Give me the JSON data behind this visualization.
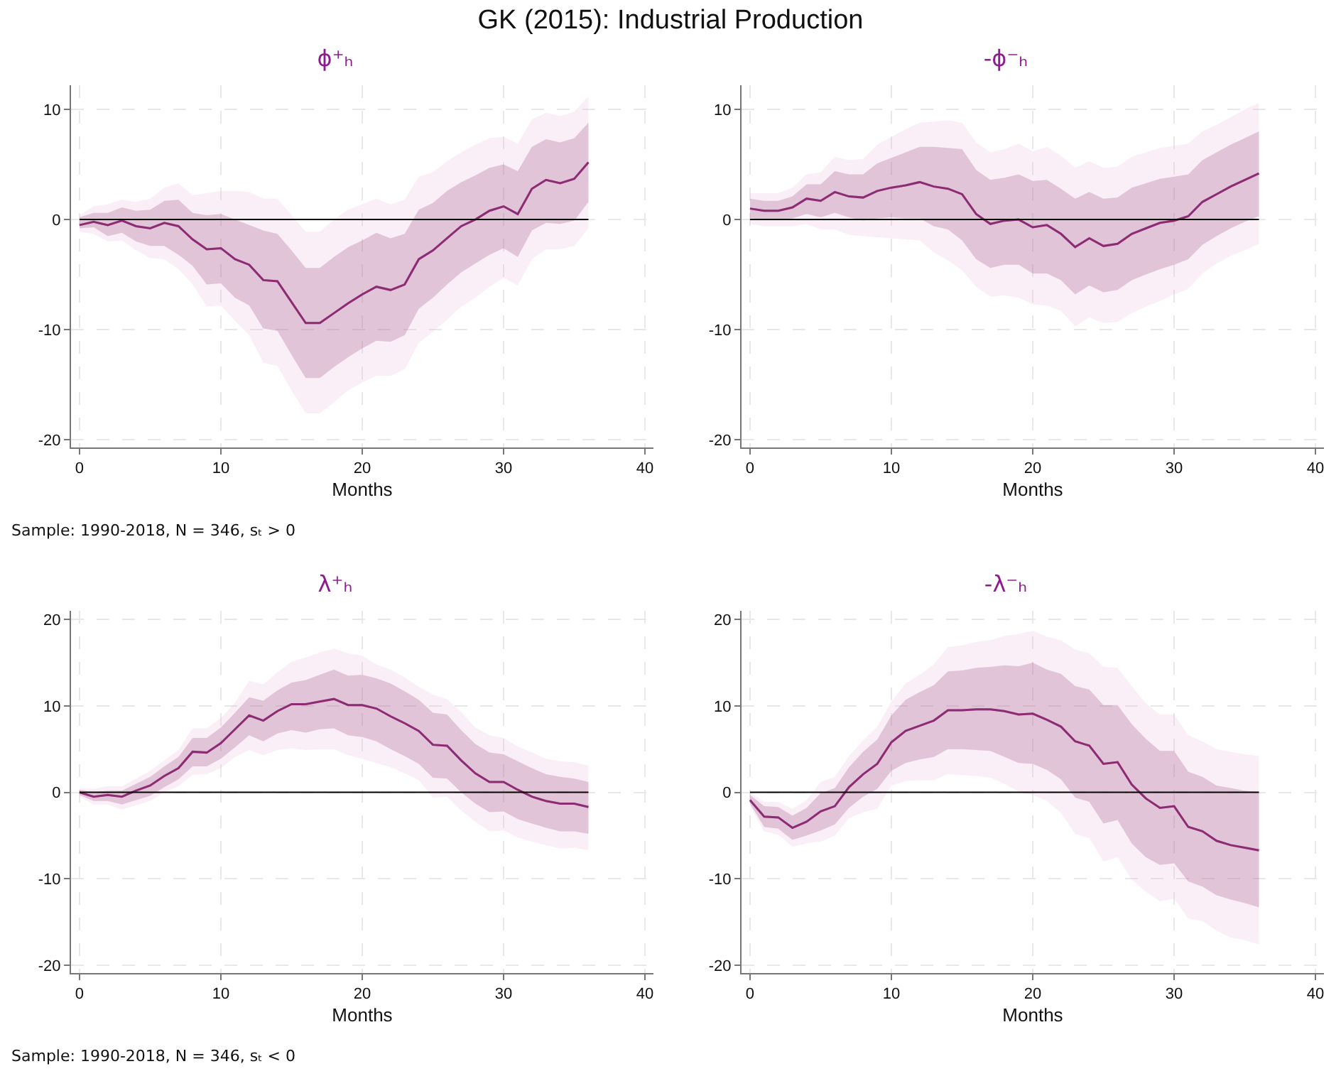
{
  "chart_data": [
    {
      "type": "line",
      "title": "GK (2015): Industrial Production",
      "subtitle": "ϕ⁺ₕ",
      "xlabel": "Months",
      "annotations": [
        "Sample: 1990-2018, N = 346, sₜ > 0"
      ],
      "x": [
        0,
        1,
        2,
        3,
        4,
        5,
        6,
        7,
        8,
        9,
        10,
        11,
        12,
        13,
        14,
        15,
        16,
        17,
        18,
        19,
        20,
        21,
        22,
        23,
        24,
        25,
        26,
        27,
        28,
        29,
        30,
        31,
        32,
        33,
        34,
        35,
        36
      ],
      "xlim": [
        -0.6,
        40.6
      ],
      "xticks": [
        0,
        10,
        20,
        30,
        40
      ],
      "ylim": [
        -20.7,
        12.2
      ],
      "yticks": [
        -20,
        -10,
        0,
        10
      ],
      "grid": true,
      "ref_lines": [
        {
          "axis": "y",
          "value": 0,
          "color": "#000000"
        }
      ],
      "series": [
        {
          "color": "#e8b8da",
          "values": [
            -0.5,
            -0.2,
            -0.5,
            -0.1,
            -0.6,
            -0.8,
            -0.3,
            -0.6,
            -1.8,
            -2.7,
            -2.6,
            -3.6,
            -4.1,
            -5.5,
            -5.6,
            -7.5,
            -9.4,
            -9.4,
            -8.5,
            -7.6,
            -6.8,
            -6.1,
            -6.4,
            -5.9,
            -3.6,
            -2.8,
            -1.7,
            -0.6,
            0,
            0.8,
            1.2,
            0.5,
            2.8,
            3.6,
            3.3,
            3.7,
            5.2
          ],
          "upper": [
            0.4,
            1.2,
            1.4,
            1.8,
            1.6,
            1.9,
            2.9,
            3.3,
            2.2,
            2.4,
            2.6,
            2.6,
            2.5,
            1.9,
            1.9,
            0.4,
            -1.1,
            -1.1,
            0,
            0.9,
            1.4,
            1.9,
            1.4,
            1.8,
            3.9,
            4.3,
            5.3,
            6.1,
            6.8,
            7.4,
            7.5,
            6.9,
            9.1,
            9.7,
            9.4,
            9.8,
            11.2
          ],
          "lower": [
            -1.1,
            -1.3,
            -2.0,
            -1.9,
            -2.8,
            -3.5,
            -3.6,
            -4.5,
            -5.9,
            -7.9,
            -7.8,
            -9.2,
            -10.5,
            -13.0,
            -13.3,
            -15.5,
            -17.6,
            -17.6,
            -16.6,
            -15.5,
            -14.8,
            -14.2,
            -14.2,
            -13.6,
            -11.2,
            -10.2,
            -9.1,
            -7.9,
            -7.1,
            -6.1,
            -5.3,
            -6.0,
            -3.6,
            -2.7,
            -2.7,
            -2.4,
            -0.8
          ]
        },
        {
          "color": "#8c2d74",
          "values": [
            -0.5,
            -0.2,
            -0.5,
            -0.1,
            -0.6,
            -0.8,
            -0.3,
            -0.6,
            -1.8,
            -2.7,
            -2.6,
            -3.6,
            -4.1,
            -5.5,
            -5.6,
            -7.5,
            -9.4,
            -9.4,
            -8.5,
            -7.6,
            -6.8,
            -6.1,
            -6.4,
            -5.9,
            -3.6,
            -2.8,
            -1.7,
            -0.6,
            0,
            0.8,
            1.2,
            0.5,
            2.8,
            3.6,
            3.3,
            3.7,
            5.2
          ],
          "upper": [
            0.2,
            0.6,
            0.6,
            1.1,
            0.8,
            0.9,
            1.7,
            1.8,
            0.6,
            0.4,
            0.5,
            0,
            -0.5,
            -1,
            -1.3,
            -2.8,
            -4.4,
            -4.4,
            -3.4,
            -2.5,
            -1.9,
            -1.2,
            -1.7,
            -1.3,
            0.9,
            1.5,
            2.6,
            3.4,
            4.0,
            4.7,
            5.0,
            4.4,
            6.6,
            7.3,
            7.0,
            7.4,
            8.8
          ],
          "lower": [
            -0.8,
            -0.7,
            -1.5,
            -1.2,
            -2.0,
            -2.4,
            -2.4,
            -3.2,
            -4.2,
            -5.9,
            -5.8,
            -7.1,
            -7.8,
            -9.9,
            -10.1,
            -12.3,
            -14.4,
            -14.4,
            -13.4,
            -12.5,
            -11.7,
            -11.0,
            -11.1,
            -10.5,
            -8.1,
            -7.1,
            -5.9,
            -4.8,
            -4.0,
            -3.2,
            -2.6,
            -3.4,
            -1.0,
            -0.3,
            -0.4,
            -0.1,
            1.6
          ]
        }
      ]
    },
    {
      "type": "line",
      "subtitle": "-ϕ⁻ₕ",
      "xlabel": "Months",
      "x": [
        0,
        1,
        2,
        3,
        4,
        5,
        6,
        7,
        8,
        9,
        10,
        11,
        12,
        13,
        14,
        15,
        16,
        17,
        18,
        19,
        20,
        21,
        22,
        23,
        24,
        25,
        26,
        27,
        28,
        29,
        30,
        31,
        32,
        33,
        34,
        35,
        36
      ],
      "xlim": [
        -0.6,
        40.6
      ],
      "xticks": [
        0,
        10,
        20,
        30,
        40
      ],
      "ylim": [
        -20.7,
        12.2
      ],
      "yticks": [
        -20,
        -10,
        0,
        10
      ],
      "grid": true,
      "ref_lines": [
        {
          "axis": "y",
          "value": 0,
          "color": "#000000"
        }
      ],
      "series": [
        {
          "color": "#e8b8da",
          "values": [
            1.0,
            0.8,
            0.8,
            1.1,
            1.9,
            1.7,
            2.5,
            2.1,
            2.0,
            2.6,
            2.9,
            3.1,
            3.4,
            3.0,
            2.8,
            2.3,
            0.5,
            -0.4,
            -0.1,
            0,
            -0.7,
            -0.5,
            -1.3,
            -2.5,
            -1.7,
            -2.4,
            -2.2,
            -1.3,
            -0.8,
            -0.3,
            -0.1,
            0.3,
            1.6,
            2.3,
            3.0,
            3.6,
            4.2
          ],
          "upper": [
            2.4,
            2.4,
            2.4,
            2.9,
            4.1,
            4.3,
            5.7,
            5.4,
            5.5,
            6.8,
            7.5,
            8.2,
            8.8,
            8.9,
            9.0,
            8.8,
            7.0,
            6.1,
            6.4,
            6.9,
            6.2,
            6.6,
            5.8,
            4.7,
            5.3,
            4.7,
            4.8,
            5.7,
            6.1,
            6.5,
            6.7,
            6.9,
            8.0,
            8.6,
            9.3,
            10.0,
            10.6
          ],
          "lower": [
            -0.4,
            -0.6,
            -0.6,
            -0.6,
            -0.4,
            -0.9,
            -0.9,
            -1.4,
            -1.5,
            -1.6,
            -1.7,
            -1.8,
            -1.9,
            -3.0,
            -3.7,
            -4.6,
            -6.1,
            -7.0,
            -6.9,
            -7.1,
            -7.7,
            -7.8,
            -8.3,
            -9.7,
            -8.9,
            -9.4,
            -9.3,
            -8.5,
            -7.9,
            -7.4,
            -6.8,
            -6.3,
            -4.9,
            -4.0,
            -3.3,
            -2.8,
            -2.2
          ]
        },
        {
          "color": "#8c2d74",
          "values": [
            1.0,
            0.8,
            0.8,
            1.1,
            1.9,
            1.7,
            2.5,
            2.1,
            2.0,
            2.6,
            2.9,
            3.1,
            3.4,
            3.0,
            2.8,
            2.3,
            0.5,
            -0.4,
            -0.1,
            0,
            -0.7,
            -0.5,
            -1.3,
            -2.5,
            -1.7,
            -2.4,
            -2.2,
            -1.3,
            -0.8,
            -0.3,
            -0.1,
            0.3,
            1.6,
            2.3,
            3.0,
            3.6,
            4.2
          ],
          "upper": [
            1.9,
            1.7,
            1.7,
            2.1,
            3.2,
            3.2,
            4.4,
            4.1,
            4.1,
            5.1,
            5.6,
            6.1,
            6.6,
            6.6,
            6.5,
            6.4,
            4.5,
            3.6,
            3.8,
            4.1,
            3.5,
            3.6,
            2.8,
            1.9,
            2.5,
            1.9,
            2.0,
            2.9,
            3.3,
            3.7,
            3.9,
            4.1,
            5.4,
            6.1,
            6.8,
            7.4,
            8.0
          ],
          "lower": [
            0.1,
            0,
            0,
            0.1,
            0.5,
            0.2,
            0.6,
            0.2,
            -0.1,
            0.1,
            0.2,
            0.1,
            0.1,
            -0.6,
            -0.9,
            -1.9,
            -3.6,
            -4.4,
            -4.1,
            -4.1,
            -4.9,
            -4.9,
            -5.5,
            -6.8,
            -6.0,
            -6.6,
            -6.4,
            -5.5,
            -5.0,
            -4.5,
            -4.1,
            -3.6,
            -2.3,
            -1.5,
            -0.8,
            -0.2,
            0.3
          ]
        }
      ]
    },
    {
      "type": "line",
      "subtitle": "λ⁺ₕ",
      "xlabel": "Months",
      "annotations": [
        "Sample: 1990-2018, N = 346, sₜ < 0"
      ],
      "x": [
        0,
        1,
        2,
        3,
        4,
        5,
        6,
        7,
        8,
        9,
        10,
        11,
        12,
        13,
        14,
        15,
        16,
        17,
        18,
        19,
        20,
        21,
        22,
        23,
        24,
        25,
        26,
        27,
        28,
        29,
        30,
        31,
        32,
        33,
        34,
        35,
        36
      ],
      "xlim": [
        -0.6,
        40.6
      ],
      "xticks": [
        0,
        10,
        20,
        30,
        40
      ],
      "ylim": [
        -20.9,
        21
      ],
      "yticks": [
        -20,
        -10,
        0,
        10,
        20
      ],
      "grid": true,
      "ref_lines": [
        {
          "axis": "y",
          "value": 0,
          "color": "#000000"
        }
      ],
      "series": [
        {
          "color": "#e8b8da",
          "values": [
            0,
            -0.5,
            -0.3,
            -0.5,
            0.2,
            0.8,
            1.9,
            2.8,
            4.7,
            4.6,
            5.7,
            7.3,
            8.9,
            8.3,
            9.4,
            10.2,
            10.2,
            10.5,
            10.8,
            10.1,
            10.1,
            9.7,
            8.8,
            8.0,
            7.1,
            5.5,
            5.4,
            3.7,
            2.2,
            1.2,
            1.2,
            0.3,
            -0.5,
            -1.0,
            -1.3,
            -1.3,
            -1.7
          ],
          "upper": [
            0.5,
            0.4,
            0.7,
            0.7,
            1.6,
            2.5,
            3.7,
            4.9,
            7.4,
            7.4,
            8.6,
            10.4,
            12.9,
            12.5,
            13.9,
            15.1,
            15.6,
            16.2,
            16.6,
            16.1,
            15.8,
            14.8,
            14.2,
            13.3,
            12.2,
            11.3,
            10.8,
            9.3,
            7.5,
            6.6,
            6.3,
            5.3,
            4.6,
            3.9,
            3.6,
            3.5,
            3.1
          ],
          "lower": [
            -0.5,
            -1.4,
            -1.4,
            -2.0,
            -1.5,
            -1.0,
            0,
            0.7,
            2.0,
            2.1,
            2.8,
            4.1,
            4.9,
            4.3,
            4.9,
            5.1,
            4.9,
            5.0,
            5.0,
            4.3,
            3.9,
            3.4,
            2.9,
            2.2,
            1.4,
            -0.6,
            -0.5,
            -2.1,
            -3.4,
            -4.5,
            -4.4,
            -5.2,
            -5.7,
            -6.1,
            -6.5,
            -6.4,
            -6.7
          ]
        },
        {
          "color": "#8c2d74",
          "values": [
            0,
            -0.5,
            -0.3,
            -0.5,
            0.2,
            0.8,
            1.9,
            2.8,
            4.7,
            4.6,
            5.7,
            7.3,
            8.9,
            8.3,
            9.4,
            10.2,
            10.2,
            10.5,
            10.8,
            10.1,
            10.1,
            9.7,
            8.8,
            8.0,
            7.1,
            5.5,
            5.4,
            3.7,
            2.2,
            1.2,
            1.2,
            0.3,
            -0.5,
            -1.0,
            -1.3,
            -1.3,
            -1.7
          ],
          "upper": [
            0.3,
            0,
            0.2,
            0.2,
            1.0,
            1.8,
            3.0,
            4.1,
            6.3,
            6.3,
            7.5,
            9.2,
            11.0,
            10.6,
            11.8,
            12.7,
            13.0,
            13.6,
            14.2,
            13.5,
            13.6,
            13.2,
            12.6,
            11.7,
            10.7,
            9.2,
            9.0,
            7.2,
            5.6,
            4.6,
            4.4,
            3.6,
            2.8,
            2.1,
            1.8,
            1.6,
            1.2
          ],
          "lower": [
            -0.3,
            -1.0,
            -1.0,
            -1.4,
            -0.9,
            -0.4,
            0.6,
            1.5,
            3.0,
            3.0,
            3.9,
            5.2,
            6.6,
            5.9,
            6.8,
            7.2,
            6.9,
            7.3,
            7.4,
            6.6,
            6.4,
            5.9,
            5.0,
            4.2,
            3.3,
            1.7,
            1.6,
            0,
            -1.3,
            -2.3,
            -2.2,
            -3.1,
            -3.6,
            -4.1,
            -4.5,
            -4.5,
            -4.8
          ]
        }
      ]
    },
    {
      "type": "line",
      "subtitle": "-λ⁻ₕ",
      "xlabel": "Months",
      "x": [
        0,
        1,
        2,
        3,
        4,
        5,
        6,
        7,
        8,
        9,
        10,
        11,
        12,
        13,
        14,
        15,
        16,
        17,
        18,
        19,
        20,
        21,
        22,
        23,
        24,
        25,
        26,
        27,
        28,
        29,
        30,
        31,
        32,
        33,
        34,
        35,
        36
      ],
      "xlim": [
        -0.6,
        40.6
      ],
      "xticks": [
        0,
        10,
        20,
        30,
        40
      ],
      "ylim": [
        -20.9,
        21
      ],
      "yticks": [
        -20,
        -10,
        0,
        10,
        20
      ],
      "grid": true,
      "ref_lines": [
        {
          "axis": "y",
          "value": 0,
          "color": "#000000"
        }
      ],
      "series": [
        {
          "color": "#e8b8da",
          "values": [
            -0.9,
            -2.8,
            -2.9,
            -4.1,
            -3.4,
            -2.2,
            -1.6,
            0.6,
            2.1,
            3.3,
            5.8,
            7.1,
            7.7,
            8.3,
            9.5,
            9.5,
            9.6,
            9.6,
            9.4,
            9.0,
            9.1,
            8.4,
            7.6,
            5.9,
            5.4,
            3.3,
            3.5,
            0.9,
            -0.7,
            -1.8,
            -1.6,
            -4.0,
            -4.5,
            -5.6,
            -6.1,
            -6.4,
            -6.7
          ],
          "upper": [
            0,
            -1.1,
            -1.1,
            -1.9,
            -0.9,
            1.2,
            1.8,
            4.2,
            6.0,
            7.6,
            10.5,
            12.6,
            13.6,
            14.8,
            16.8,
            17.0,
            17.4,
            17.6,
            18.1,
            18.3,
            18.7,
            18.0,
            17.6,
            16.5,
            16.1,
            14.5,
            14.4,
            12.3,
            10.3,
            9.0,
            9.0,
            6.6,
            5.9,
            5.0,
            4.7,
            4.4,
            4.2
          ],
          "lower": [
            -1.6,
            -4.5,
            -4.9,
            -6.3,
            -5.9,
            -5.7,
            -5.0,
            -3.0,
            -2.3,
            -1.9,
            0.8,
            1.3,
            1.4,
            1.4,
            2.1,
            2.0,
            1.9,
            1.7,
            1.0,
            0.1,
            -0.3,
            -1.0,
            -2.4,
            -4.8,
            -5.3,
            -8.0,
            -7.5,
            -10.1,
            -11.5,
            -12.6,
            -12.3,
            -14.6,
            -14.9,
            -16.0,
            -16.8,
            -17.1,
            -17.6
          ]
        },
        {
          "color": "#8c2d74",
          "values": [
            -0.9,
            -2.8,
            -2.9,
            -4.1,
            -3.4,
            -2.2,
            -1.6,
            0.6,
            2.1,
            3.3,
            5.8,
            7.1,
            7.7,
            8.3,
            9.5,
            9.5,
            9.6,
            9.6,
            9.4,
            9.0,
            9.1,
            8.4,
            7.6,
            5.9,
            5.4,
            3.3,
            3.5,
            0.9,
            -0.7,
            -1.8,
            -1.6,
            -4.0,
            -4.5,
            -5.6,
            -6.1,
            -6.4,
            -6.7
          ],
          "upper": [
            -0.3,
            -1.6,
            -1.7,
            -2.7,
            -1.8,
            -0.1,
            0.5,
            2.9,
            4.7,
            6.1,
            8.9,
            10.7,
            11.6,
            12.4,
            14.0,
            14.1,
            14.4,
            14.5,
            14.7,
            14.6,
            15.0,
            14.2,
            13.7,
            12.3,
            11.9,
            10.1,
            10.1,
            7.9,
            6.2,
            4.8,
            4.8,
            2.4,
            1.8,
            0.8,
            0.5,
            0.2,
            0
          ],
          "lower": [
            -1.3,
            -4.0,
            -4.2,
            -5.5,
            -5.0,
            -4.4,
            -3.7,
            -1.8,
            -0.5,
            0.4,
            2.5,
            3.4,
            3.8,
            4.1,
            5.0,
            5.0,
            4.9,
            4.8,
            4.1,
            3.4,
            3.3,
            2.6,
            1.5,
            -0.6,
            -1.1,
            -3.6,
            -3.2,
            -5.9,
            -7.5,
            -8.4,
            -8.2,
            -10.3,
            -10.9,
            -11.9,
            -12.4,
            -12.8,
            -13.3
          ]
        }
      ]
    }
  ]
}
